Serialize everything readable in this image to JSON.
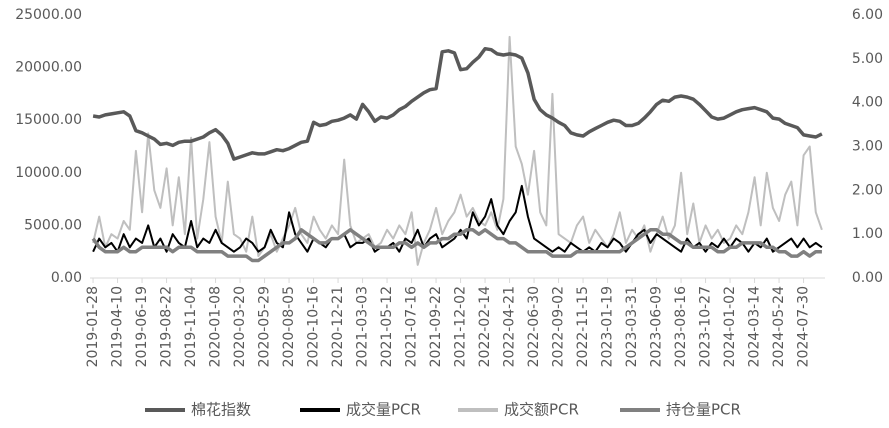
{
  "chart_data": {
    "type": "line",
    "categories": [
      "2019-01-28",
      null,
      null,
      null,
      "2019-04-10",
      null,
      null,
      null,
      "2019-06-19",
      null,
      null,
      null,
      "2019-08-22",
      null,
      null,
      null,
      "2019-11-04",
      null,
      null,
      null,
      "2020-01-08",
      null,
      null,
      null,
      "2020-03-20",
      null,
      null,
      null,
      "2020-05-29",
      null,
      null,
      null,
      "2020-08-05",
      null,
      null,
      null,
      "2020-10-16",
      null,
      null,
      null,
      "2020-12-21",
      null,
      null,
      null,
      "2021-03-03",
      null,
      null,
      null,
      "2021-05-12",
      null,
      null,
      null,
      "2021-07-16",
      null,
      null,
      null,
      "2021-09-22",
      null,
      null,
      null,
      "2021-12-02",
      null,
      null,
      null,
      "2022-02-14",
      null,
      null,
      null,
      "2022-04-21",
      null,
      null,
      null,
      "2022-06-30",
      null,
      null,
      null,
      "2022-09-02",
      null,
      null,
      null,
      "2022-11-15",
      null,
      null,
      null,
      "2023-01-19",
      null,
      null,
      null,
      "2023-03-31",
      null,
      null,
      null,
      "2023-06-09",
      null,
      null,
      null,
      "2023-08-16",
      null,
      null,
      null,
      "2023-10-27",
      null,
      null,
      null,
      "2024-01-02",
      null,
      null,
      null,
      "2024-03-14",
      null,
      null,
      null,
      "2024-05-24",
      null,
      null,
      null,
      "2024-07-30",
      null,
      null,
      null
    ],
    "series": [
      {
        "name": "棉花指数",
        "color": "#595959",
        "axis": "y",
        "values": [
          15400,
          15300,
          15500,
          15600,
          15700,
          15800,
          15400,
          14000,
          13800,
          13500,
          13200,
          12700,
          12800,
          12600,
          12900,
          13000,
          13000,
          13200,
          13400,
          13800,
          14100,
          13600,
          12800,
          11300,
          11500,
          11700,
          11900,
          11800,
          11800,
          12000,
          12200,
          12100,
          12300,
          12600,
          12900,
          13000,
          14800,
          14500,
          14600,
          14900,
          15000,
          15200,
          15500,
          15100,
          16500,
          15800,
          14900,
          15300,
          15200,
          15500,
          16000,
          16300,
          16800,
          17200,
          17600,
          17900,
          18000,
          21500,
          21600,
          21400,
          19800,
          19900,
          20500,
          21000,
          21800,
          21700,
          21300,
          21200,
          21300,
          21200,
          20900,
          19500,
          17000,
          16000,
          15500,
          15200,
          14800,
          14500,
          13800,
          13600,
          13500,
          13900,
          14200,
          14500,
          14800,
          15000,
          14900,
          14500,
          14500,
          14700,
          15200,
          15800,
          16500,
          16900,
          16800,
          17200,
          17300,
          17200,
          17000,
          16500,
          15900,
          15300,
          15100,
          15200,
          15500,
          15800,
          16000,
          16100,
          16200,
          16000,
          15800,
          15200,
          15100,
          14700,
          14500,
          14300,
          13600,
          13500,
          13400,
          13700
        ]
      },
      {
        "name": "成交量PCR",
        "color": "#000000",
        "axis": "y2",
        "values": [
          0.6,
          0.9,
          0.7,
          0.8,
          0.6,
          1.0,
          0.7,
          0.9,
          0.8,
          1.2,
          0.7,
          0.9,
          0.6,
          1.0,
          0.8,
          0.7,
          1.3,
          0.7,
          0.9,
          0.8,
          1.1,
          0.8,
          0.7,
          0.6,
          0.7,
          0.9,
          0.8,
          0.6,
          0.7,
          1.1,
          0.8,
          0.7,
          1.5,
          1.0,
          0.8,
          0.6,
          0.9,
          0.8,
          0.7,
          0.9,
          0.9,
          1.0,
          0.7,
          0.8,
          0.8,
          0.9,
          0.6,
          0.7,
          0.7,
          0.8,
          0.6,
          0.9,
          0.8,
          1.1,
          0.7,
          0.9,
          1.0,
          0.7,
          0.8,
          0.9,
          1.1,
          0.9,
          1.5,
          1.2,
          1.4,
          1.8,
          1.2,
          1.0,
          1.3,
          1.5,
          2.1,
          1.4,
          0.9,
          0.8,
          0.7,
          0.6,
          0.7,
          0.6,
          0.8,
          0.7,
          0.6,
          0.7,
          0.6,
          0.8,
          0.7,
          0.9,
          0.8,
          0.6,
          0.8,
          1.0,
          1.1,
          0.8,
          1.0,
          0.9,
          0.8,
          0.7,
          0.6,
          0.9,
          0.7,
          0.8,
          0.6,
          0.8,
          0.7,
          0.9,
          0.7,
          0.9,
          0.8,
          0.6,
          0.8,
          0.7,
          0.9,
          0.6,
          0.7,
          0.8,
          0.9,
          0.7,
          0.9,
          0.7,
          0.8,
          0.7
        ]
      },
      {
        "name": "成交额PCR",
        "color": "#bfbfbf",
        "axis": "y2",
        "values": [
          0.8,
          1.4,
          0.7,
          1.0,
          0.9,
          1.3,
          1.1,
          2.9,
          1.5,
          3.3,
          2.0,
          1.6,
          2.5,
          1.2,
          2.3,
          1.0,
          3.2,
          0.9,
          1.8,
          3.1,
          1.4,
          0.8,
          2.2,
          1.0,
          0.9,
          0.6,
          1.4,
          0.5,
          0.7,
          1.0,
          0.6,
          0.9,
          1.2,
          1.6,
          1.0,
          0.8,
          1.4,
          1.1,
          0.9,
          1.2,
          1.0,
          2.7,
          1.2,
          0.8,
          0.9,
          1.0,
          0.7,
          0.8,
          1.1,
          0.9,
          1.2,
          1.0,
          1.5,
          0.3,
          0.8,
          1.1,
          1.6,
          1.0,
          1.3,
          1.5,
          1.9,
          1.4,
          1.6,
          1.3,
          1.2,
          1.5,
          1.1,
          1.8,
          5.5,
          3.0,
          2.6,
          1.9,
          2.9,
          1.5,
          1.2,
          4.2,
          1.0,
          0.9,
          0.8,
          1.2,
          1.4,
          0.8,
          1.1,
          0.9,
          0.7,
          1.0,
          1.5,
          0.8,
          1.1,
          0.9,
          1.2,
          0.6,
          1.0,
          1.4,
          0.9,
          1.2,
          2.4,
          1.0,
          1.7,
          0.8,
          1.2,
          0.9,
          1.1,
          0.8,
          0.9,
          1.2,
          1.0,
          1.5,
          2.3,
          1.2,
          2.4,
          1.6,
          1.3,
          1.9,
          2.2,
          1.2,
          2.8,
          3.0,
          1.5,
          1.1
        ]
      },
      {
        "name": "持仓量PCR",
        "color": "#808080",
        "axis": "y2",
        "values": [
          0.9,
          0.7,
          0.6,
          0.6,
          0.6,
          0.7,
          0.6,
          0.6,
          0.7,
          0.7,
          0.7,
          0.7,
          0.7,
          0.6,
          0.7,
          0.7,
          0.7,
          0.6,
          0.6,
          0.6,
          0.6,
          0.6,
          0.5,
          0.5,
          0.5,
          0.5,
          0.4,
          0.4,
          0.5,
          0.6,
          0.7,
          0.8,
          0.8,
          0.9,
          1.1,
          1.0,
          0.9,
          0.8,
          0.8,
          0.9,
          0.9,
          1.0,
          1.1,
          1.0,
          0.9,
          0.8,
          0.7,
          0.7,
          0.7,
          0.7,
          0.8,
          0.8,
          0.7,
          0.8,
          0.7,
          0.8,
          0.8,
          0.9,
          0.9,
          1.0,
          1.0,
          1.1,
          1.1,
          1.0,
          1.1,
          1.0,
          0.9,
          0.9,
          0.8,
          0.8,
          0.7,
          0.6,
          0.6,
          0.6,
          0.6,
          0.5,
          0.5,
          0.5,
          0.5,
          0.6,
          0.6,
          0.6,
          0.6,
          0.6,
          0.6,
          0.6,
          0.6,
          0.7,
          0.8,
          0.9,
          1.0,
          1.1,
          1.1,
          1.0,
          1.0,
          0.9,
          0.8,
          0.8,
          0.7,
          0.7,
          0.7,
          0.7,
          0.6,
          0.6,
          0.7,
          0.7,
          0.8,
          0.8,
          0.8,
          0.8,
          0.7,
          0.7,
          0.6,
          0.6,
          0.5,
          0.5,
          0.6,
          0.5,
          0.6,
          0.6
        ]
      }
    ],
    "ylim": [
      0,
      25000
    ],
    "yticks": [
      {
        "value": 0,
        "label": "0.00"
      },
      {
        "value": 5000,
        "label": "5000.00"
      },
      {
        "value": 10000,
        "label": "10000.00"
      },
      {
        "value": 15000,
        "label": "15000.00"
      },
      {
        "value": 20000,
        "label": "20000.00"
      },
      {
        "value": 25000,
        "label": "25000.00"
      }
    ],
    "y2lim": [
      0,
      6
    ],
    "y2ticks": [
      {
        "value": 0,
        "label": "0.00"
      },
      {
        "value": 1,
        "label": "1.00"
      },
      {
        "value": 2,
        "label": "2.00"
      },
      {
        "value": 3,
        "label": "3.00"
      },
      {
        "value": 4,
        "label": "4.00"
      },
      {
        "value": 5,
        "label": "5.00"
      },
      {
        "value": 6,
        "label": "6.00"
      }
    ],
    "grid": false,
    "legend": "bottom"
  }
}
